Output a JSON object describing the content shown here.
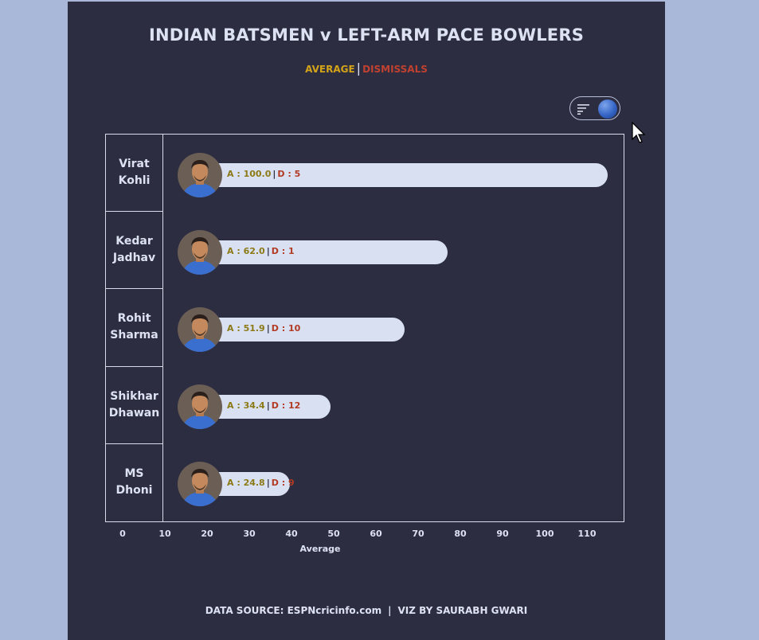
{
  "title": "INDIAN BATSMEN v LEFT-ARM PACE BOWLERS",
  "subtitle": {
    "average": "AVERAGE",
    "separator": "|",
    "dismissals": "DISMISSALS"
  },
  "colors": {
    "average": "#d4a418",
    "dismissals": "#c0412f",
    "bar": "#d9e0f2",
    "background": "#2d2d42"
  },
  "toggle": {
    "icon": "sort-icon",
    "state": "on"
  },
  "chart_data": {
    "type": "bar",
    "orientation": "horizontal",
    "categories": [
      [
        "Virat",
        "Kohli"
      ],
      [
        "Kedar",
        "Jadhav"
      ],
      [
        "Rohit",
        "Sharma"
      ],
      [
        "Shikhar",
        "Dhawan"
      ],
      [
        "MS",
        "Dhoni"
      ]
    ],
    "series": [
      {
        "name": "Average",
        "values": [
          100.0,
          62.0,
          51.9,
          34.4,
          24.8
        ]
      },
      {
        "name": "Dismissals",
        "values": [
          5,
          1,
          10,
          12,
          9
        ]
      }
    ],
    "bar_labels": [
      {
        "average": "A : 100.0",
        "separator": "|",
        "dismissals": "D : 5"
      },
      {
        "average": "A : 62.0",
        "separator": "|",
        "dismissals": "D : 1"
      },
      {
        "average": "A : 51.9",
        "separator": "|",
        "dismissals": "D : 10"
      },
      {
        "average": "A : 34.4",
        "separator": "|",
        "dismissals": "D : 12"
      },
      {
        "average": "A : 24.8",
        "separator": "|",
        "dismissals": "D : 9"
      }
    ],
    "xlabel": "Average",
    "xlim": [
      0,
      110
    ],
    "xticks": [
      "0",
      "10",
      "20",
      "30",
      "40",
      "50",
      "60",
      "70",
      "80",
      "90",
      "100",
      "110"
    ],
    "grid": false,
    "legend": "top-center"
  },
  "footer": {
    "source": "DATA SOURCE: ESPNcricinfo.com",
    "separator": "|",
    "credit": "VIZ BY SAURABH GWARI"
  }
}
